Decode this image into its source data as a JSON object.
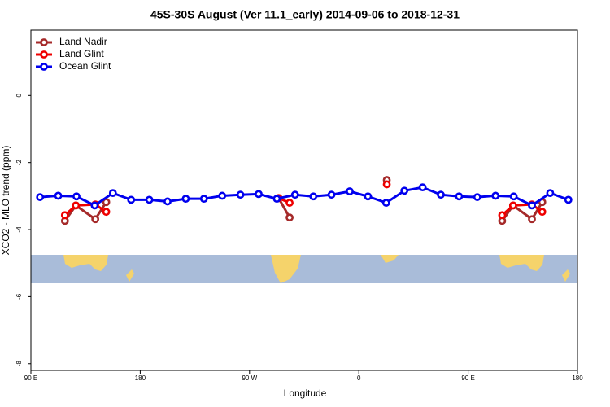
{
  "chart_data": {
    "type": "line",
    "title": "45S-30S August (Ver 11.1_early)   2014-09-06 to 2018-12-31",
    "x_label": "Longitude",
    "y_label": "XCO2 - MLO trend (ppm)",
    "xlim": [
      90,
      540
    ],
    "ylim": [
      -8.2,
      1.95
    ],
    "xticks": [
      {
        "value": 90,
        "label": "90 E"
      },
      180,
      {
        "value": 270,
        "label": "90 W"
      },
      {
        "value": 360,
        "label": "0"
      },
      {
        "value": 450,
        "label": "90 E"
      },
      {
        "value": 540,
        "label": "180"
      }
    ],
    "yticks": [
      -8,
      -6,
      -4,
      -2,
      0
    ],
    "legend": "top-left",
    "series": [
      {
        "name": "Land Nadir",
        "color": "#a52a2a",
        "x": [
          118,
          127,
          143,
          152,
          200,
          294,
          303,
          350,
          383,
          430,
          478,
          487,
          502.5,
          511
        ],
        "values": [
          -3.74,
          -3.28,
          -3.69,
          -3.18,
          null,
          -3.06,
          -3.64,
          null,
          -2.52,
          null,
          -3.74,
          -3.28,
          -3.69,
          -3.18
        ]
      },
      {
        "name": "Land Glint",
        "color": "#ee0000",
        "x": [
          118,
          127,
          143,
          152,
          200,
          294,
          303,
          350,
          383,
          430,
          478,
          487,
          502.5,
          511
        ],
        "values": [
          -3.57,
          -3.28,
          -3.25,
          -3.47,
          null,
          -3.06,
          -3.2,
          null,
          -2.65,
          null,
          -3.57,
          -3.28,
          -3.25,
          -3.47
        ]
      },
      {
        "name": "Ocean Glint",
        "color": "#0000ee",
        "x": [
          97.5,
          112.5,
          127.5,
          142.5,
          157.5,
          172.5,
          187.5,
          202.5,
          217.5,
          232.5,
          247.5,
          262.5,
          277.5,
          292.5,
          307.5,
          322.5,
          337.5,
          352.5,
          367.5,
          382.5,
          397.5,
          412.5,
          427.5,
          442.5,
          457.5,
          472.5,
          487.5,
          502.5,
          517.5,
          532.5
        ],
        "values": [
          -3.03,
          -2.99,
          -3.01,
          -3.28,
          -2.91,
          -3.11,
          -3.11,
          -3.16,
          -3.08,
          -3.08,
          -2.99,
          -2.96,
          -2.94,
          -3.08,
          -2.96,
          -3.01,
          -2.96,
          -2.86,
          -3.01,
          -3.2,
          -2.84,
          -2.74,
          -2.96,
          -3.01,
          -3.03,
          -2.99,
          -3.01,
          -3.28,
          -2.91,
          -3.11
        ]
      }
    ]
  }
}
